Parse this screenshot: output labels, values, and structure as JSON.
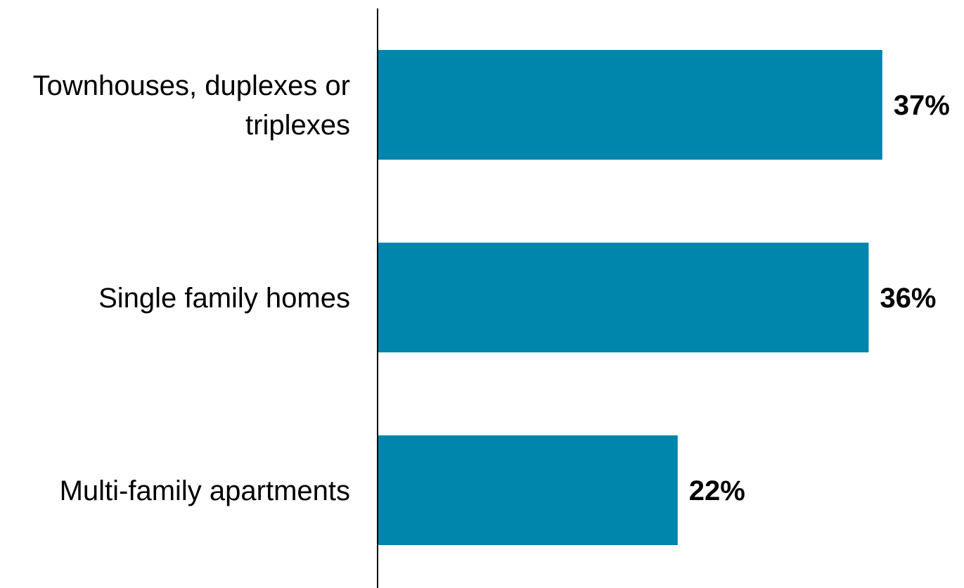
{
  "chart_data": {
    "type": "bar",
    "orientation": "horizontal",
    "categories": [
      [
        "Townhouses, duplexes or",
        "triplexes"
      ],
      [
        "Single family homes"
      ],
      [
        "Multi-family apartments"
      ]
    ],
    "values": [
      37,
      36,
      22
    ],
    "value_labels": [
      "37%",
      "36%",
      "22%"
    ],
    "bar_color": "#0085AD",
    "axis_color": "#000000",
    "grid": false,
    "legend": "none"
  }
}
